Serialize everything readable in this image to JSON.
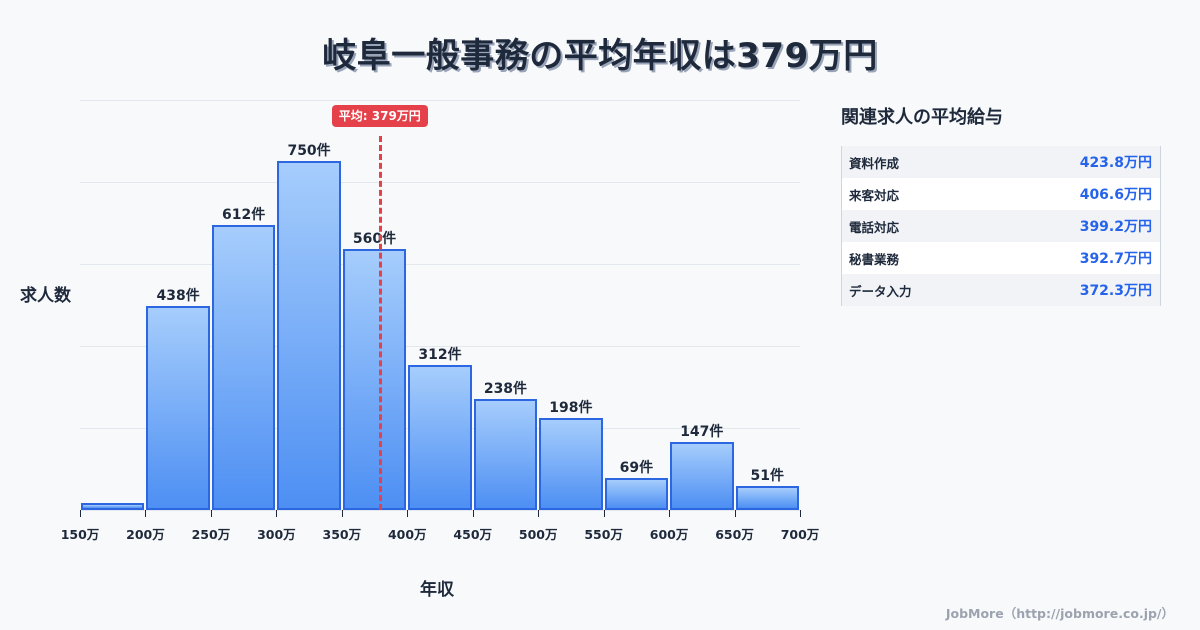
{
  "title": "岐阜一般事務の平均年収は379万円",
  "chart_data": {
    "type": "bar",
    "title": "岐阜一般事務の平均年収は379万円",
    "xlabel": "年収",
    "ylabel": "求人数",
    "x_ticks": [
      "150万",
      "200万",
      "250万",
      "300万",
      "350万",
      "400万",
      "450万",
      "500万",
      "550万",
      "600万",
      "650万",
      "700万"
    ],
    "bins": [
      {
        "range": "150-200万",
        "value": 15,
        "label": ""
      },
      {
        "range": "200-250万",
        "value": 438,
        "label": "438件"
      },
      {
        "range": "250-300万",
        "value": 612,
        "label": "612件"
      },
      {
        "range": "300-350万",
        "value": 750,
        "label": "750件"
      },
      {
        "range": "350-400万",
        "value": 560,
        "label": "560件"
      },
      {
        "range": "400-450万",
        "value": 312,
        "label": "312件"
      },
      {
        "range": "450-500万",
        "value": 238,
        "label": "238件"
      },
      {
        "range": "500-550万",
        "value": 198,
        "label": "198件"
      },
      {
        "range": "550-600万",
        "value": 69,
        "label": "69件"
      },
      {
        "range": "600-650万",
        "value": 147,
        "label": "147件"
      },
      {
        "range": "650-700万",
        "value": 51,
        "label": "51件"
      }
    ],
    "categories": [
      "150-200万",
      "200-250万",
      "250-300万",
      "300-350万",
      "350-400万",
      "400-450万",
      "450-500万",
      "500-550万",
      "550-600万",
      "600-650万",
      "650-700万"
    ],
    "values": [
      15,
      438,
      612,
      750,
      560,
      312,
      238,
      198,
      69,
      147,
      51
    ],
    "xlim": [
      150,
      700
    ],
    "ylim": [
      0,
      881
    ],
    "grid": true,
    "annotations": [
      {
        "type": "vline",
        "x": 379,
        "label": "平均: 379万円",
        "color": "#e5414a"
      }
    ]
  },
  "average": {
    "value": 379,
    "label": "平均: 379万円"
  },
  "axes": {
    "y_label": "求人数",
    "x_label": "年収"
  },
  "side_panel": {
    "title": "関連求人の平均給与",
    "rows": [
      {
        "name": "資料作成",
        "value": "423.8万円"
      },
      {
        "name": "来客対応",
        "value": "406.6万円"
      },
      {
        "name": "電話対応",
        "value": "399.2万円"
      },
      {
        "name": "秘書業務",
        "value": "392.7万円"
      },
      {
        "name": "データ入力",
        "value": "372.3万円"
      }
    ]
  },
  "footer": "JobMore（http://jobmore.co.jp/）",
  "colors": {
    "bar_border": "#2c66e0",
    "bar_top": "#a6cdfc",
    "bar_bottom": "#4d8ff3",
    "average_line": "#e5414a",
    "side_value": "#2563eb"
  }
}
